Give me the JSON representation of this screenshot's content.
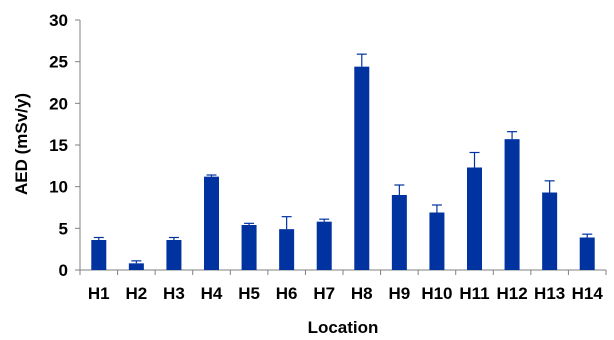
{
  "chart_data": {
    "type": "bar",
    "title": "",
    "xlabel": "Location",
    "ylabel": "AED (mSv/y)",
    "categories": [
      "H1",
      "H2",
      "H3",
      "H4",
      "H5",
      "H6",
      "H7",
      "H8",
      "H9",
      "H10",
      "H11",
      "H12",
      "H13",
      "H14"
    ],
    "values": [
      3.6,
      0.8,
      3.6,
      11.2,
      5.4,
      4.9,
      5.8,
      24.4,
      9.0,
      6.9,
      12.3,
      15.7,
      9.3,
      3.9
    ],
    "errors": [
      0.3,
      0.3,
      0.3,
      0.2,
      0.2,
      1.5,
      0.3,
      1.5,
      1.2,
      0.9,
      1.8,
      0.9,
      1.4,
      0.4
    ],
    "ylim": [
      0,
      30
    ],
    "yticks": [
      0,
      5,
      10,
      15,
      20,
      25,
      30
    ],
    "grid": false,
    "legend": "none",
    "bar_color": "#0033a0",
    "axis_color": "#808080"
  }
}
